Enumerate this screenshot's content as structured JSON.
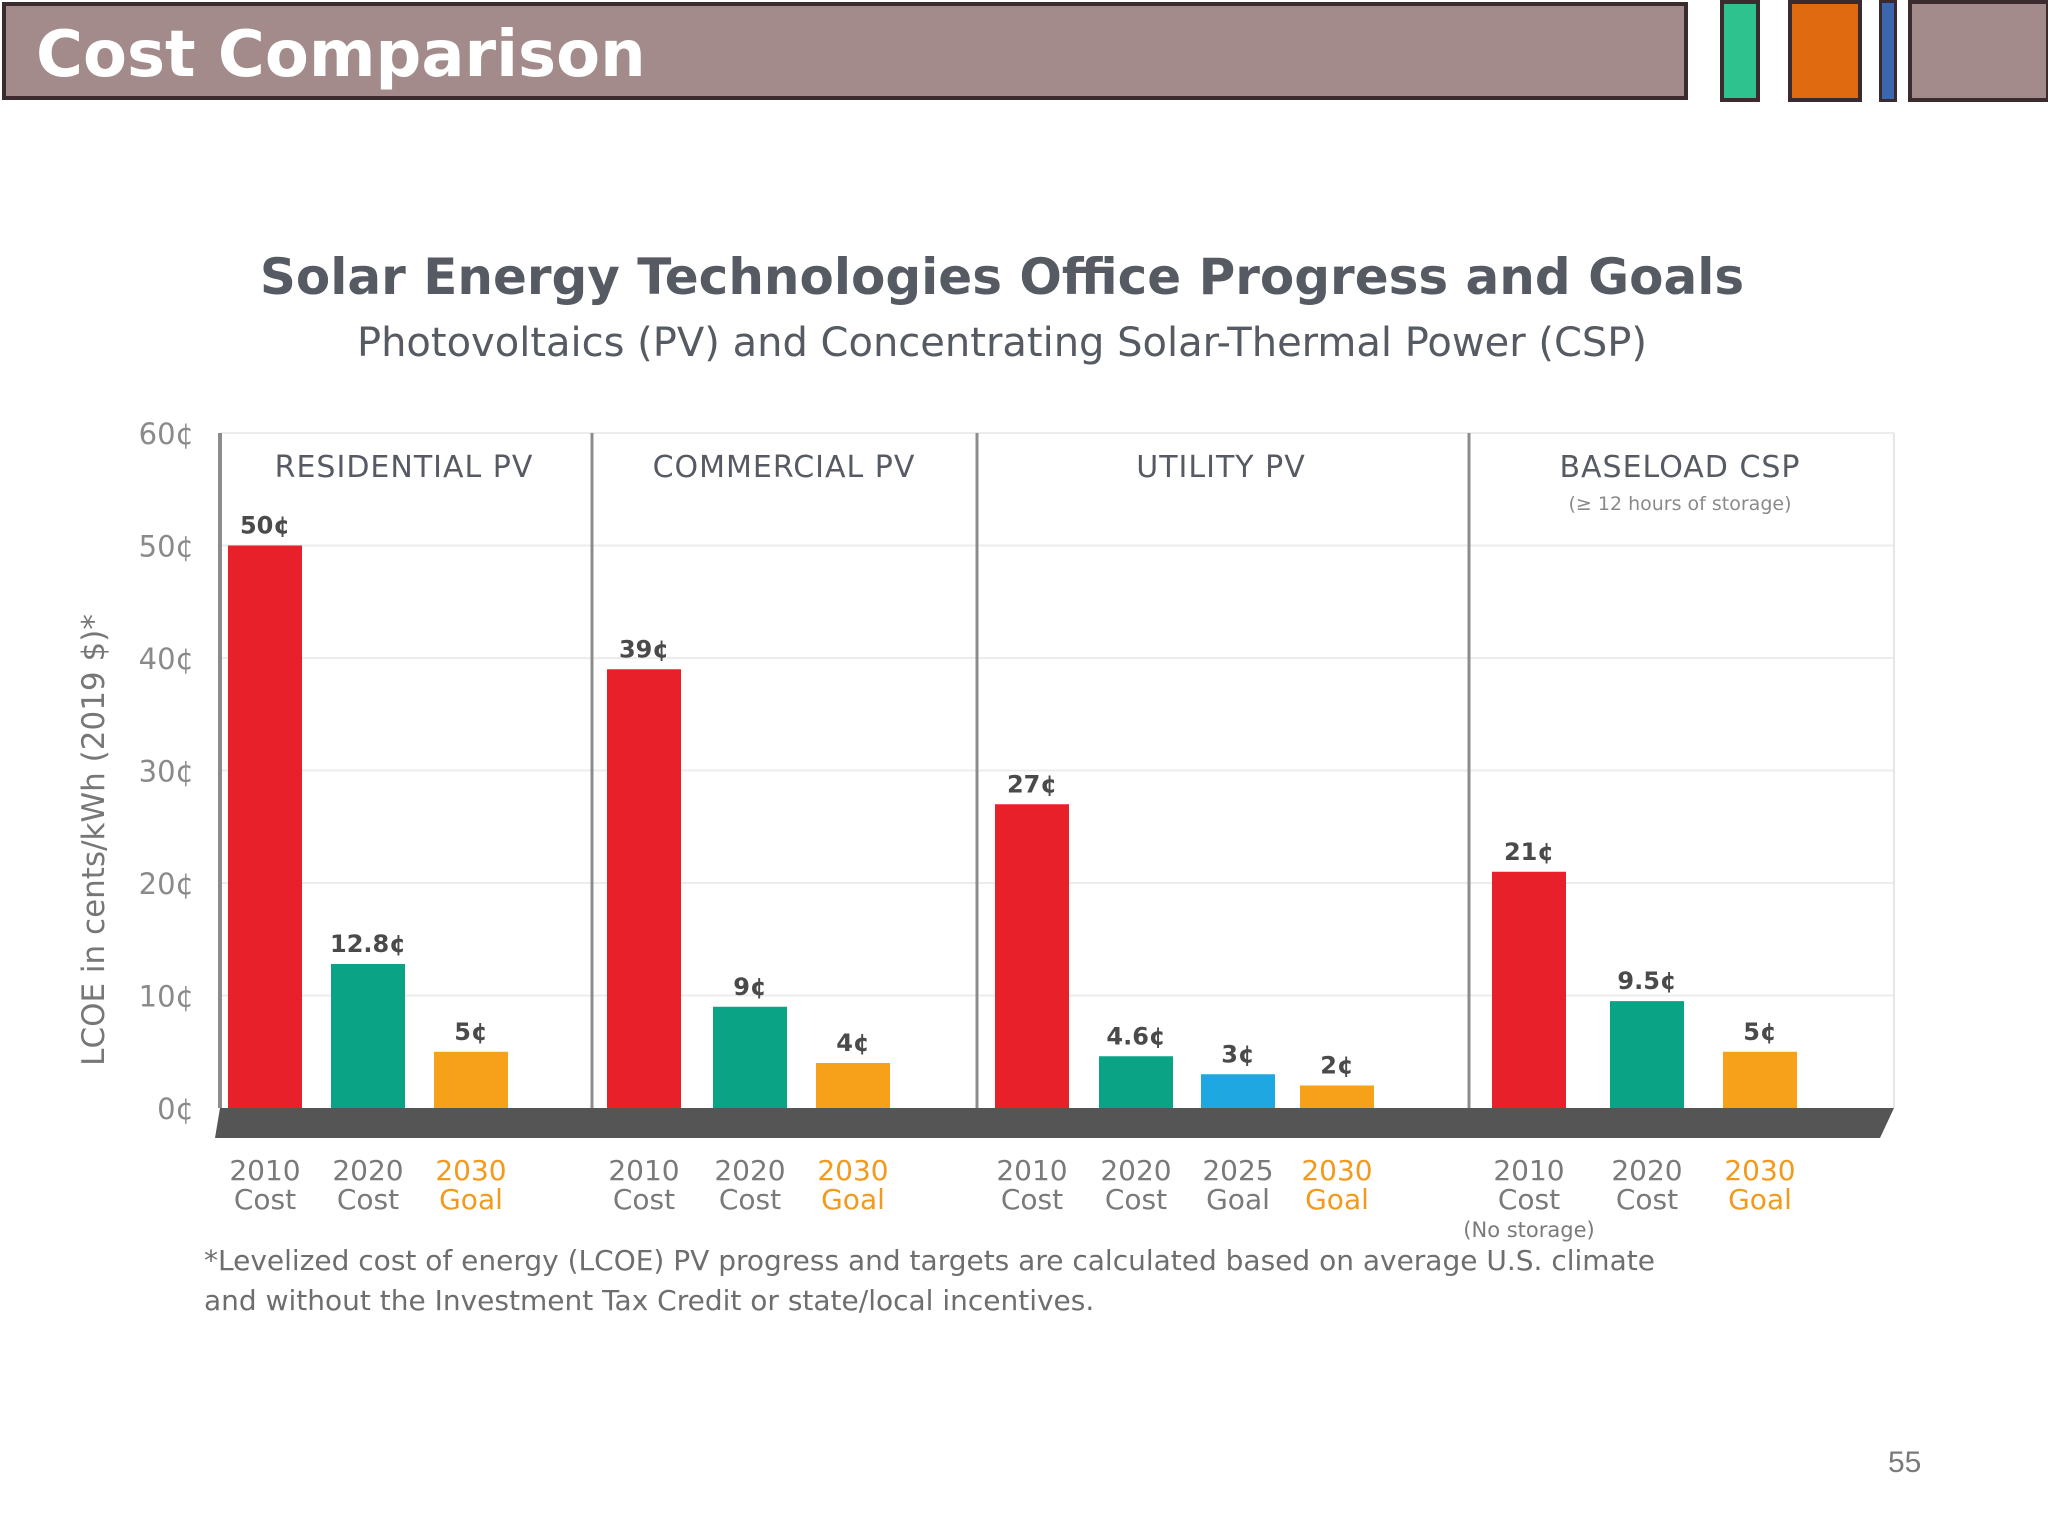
{
  "slide": {
    "title": "Cost Comparison",
    "page_number": "55",
    "accent_colors": [
      "#2ec28e",
      "#e06a10",
      "#3c66b0",
      "#a38b8b"
    ]
  },
  "chart_data": {
    "type": "bar",
    "title": "Solar Energy Technologies Office Progress and Goals",
    "subtitle": "Photovoltaics (PV) and Concentrating Solar-Thermal Power (CSP)",
    "ylabel": "LCOE in cents/kWh (2019 $)*",
    "ylim": [
      0,
      60
    ],
    "yticks": [
      "0¢",
      "10¢",
      "20¢",
      "30¢",
      "40¢",
      "50¢",
      "60¢"
    ],
    "grid": true,
    "footnote_line1": "*Levelized cost of energy (LCOE) PV progress and targets are calculated based on average U.S. climate",
    "footnote_line2": "and without the Investment Tax Credit or state/local incentives.",
    "colors": {
      "cost2010": "#e8202a",
      "cost2020": "#0aa385",
      "goal2025": "#1ea7e1",
      "goal2030": "#f7a11a",
      "goal_text": "#f39a1d",
      "floor": "#555555"
    },
    "groups": [
      {
        "name": "RESIDENTIAL PV",
        "note": "",
        "bars": [
          {
            "year": "2010",
            "kind": "Cost",
            "value": 50,
            "label": "50¢",
            "color": "cost2010"
          },
          {
            "year": "2020",
            "kind": "Cost",
            "value": 12.8,
            "label": "12.8¢",
            "color": "cost2020"
          },
          {
            "year": "2030",
            "kind": "Goal",
            "value": 5,
            "label": "5¢",
            "color": "goal2030"
          }
        ]
      },
      {
        "name": "COMMERCIAL PV",
        "note": "",
        "bars": [
          {
            "year": "2010",
            "kind": "Cost",
            "value": 39,
            "label": "39¢",
            "color": "cost2010"
          },
          {
            "year": "2020",
            "kind": "Cost",
            "value": 9,
            "label": "9¢",
            "color": "cost2020"
          },
          {
            "year": "2030",
            "kind": "Goal",
            "value": 4,
            "label": "4¢",
            "color": "goal2030"
          }
        ]
      },
      {
        "name": "UTILITY PV",
        "note": "",
        "bars": [
          {
            "year": "2010",
            "kind": "Cost",
            "value": 27,
            "label": "27¢",
            "color": "cost2010"
          },
          {
            "year": "2020",
            "kind": "Cost",
            "value": 4.6,
            "label": "4.6¢",
            "color": "cost2020"
          },
          {
            "year": "2025",
            "kind": "Goal",
            "value": 3,
            "label": "3¢",
            "color": "goal2025"
          },
          {
            "year": "2030",
            "kind": "Goal",
            "value": 2,
            "label": "2¢",
            "color": "goal2030"
          }
        ]
      },
      {
        "name": "BASELOAD CSP",
        "note": "(≥ 12 hours of storage)",
        "bars": [
          {
            "year": "2010",
            "kind": "Cost",
            "value": 21,
            "label": "21¢",
            "color": "cost2010",
            "sub": "(No storage)"
          },
          {
            "year": "2020",
            "kind": "Cost",
            "value": 9.5,
            "label": "9.5¢",
            "color": "cost2020"
          },
          {
            "year": "2030",
            "kind": "Goal",
            "value": 5,
            "label": "5¢",
            "color": "goal2030"
          }
        ]
      }
    ]
  }
}
